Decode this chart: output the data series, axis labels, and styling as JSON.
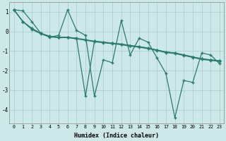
{
  "xlabel": "Humidex (Indice chaleur)",
  "bg_color": "#cce8e8",
  "grid_color": "#aacccc",
  "line_color": "#2a7b6e",
  "xlim_min": -0.5,
  "xlim_max": 23.5,
  "ylim_min": -4.7,
  "ylim_max": 1.5,
  "yticks": [
    1,
    0,
    -1,
    -2,
    -3,
    -4
  ],
  "xticks": [
    0,
    1,
    2,
    3,
    4,
    5,
    6,
    7,
    8,
    9,
    10,
    11,
    12,
    13,
    14,
    15,
    16,
    17,
    18,
    19,
    20,
    21,
    22,
    23
  ],
  "series": [
    {
      "x": [
        0,
        1,
        2,
        3,
        4,
        5,
        6,
        7,
        8,
        9,
        10,
        11,
        12,
        13,
        14,
        15,
        16,
        17,
        18,
        19,
        20,
        21,
        22,
        23
      ],
      "y": [
        1.1,
        1.05,
        0.5,
        -0.1,
        -0.3,
        -0.2,
        1.1,
        0.05,
        -0.2,
        -3.3,
        -1.45,
        -1.6,
        0.55,
        -1.2,
        -0.35,
        -0.55,
        -1.35,
        -2.15,
        -4.4,
        -2.5,
        -2.6,
        -1.1,
        -1.2,
        -1.65
      ]
    },
    {
      "x": [
        0,
        1,
        2,
        3,
        4,
        5,
        6,
        7,
        8,
        9,
        10,
        11,
        12,
        13,
        14,
        15,
        16,
        17,
        18,
        19,
        20,
        21,
        22,
        23
      ],
      "y": [
        1.1,
        0.5,
        0.15,
        -0.1,
        -0.25,
        -0.3,
        -0.3,
        -0.35,
        -0.42,
        -0.5,
        -0.55,
        -0.6,
        -0.65,
        -0.72,
        -0.78,
        -0.85,
        -0.95,
        -1.05,
        -1.1,
        -1.2,
        -1.3,
        -1.4,
        -1.45,
        -1.5
      ]
    },
    {
      "x": [
        0,
        1,
        2,
        3,
        4,
        5,
        6,
        7,
        8,
        9,
        10,
        11,
        12,
        13,
        14,
        15,
        16,
        17,
        18,
        19,
        20,
        21,
        22,
        23
      ],
      "y": [
        1.1,
        0.5,
        0.1,
        -0.12,
        -0.28,
        -0.32,
        -0.32,
        -0.38,
        -0.45,
        -0.53,
        -0.58,
        -0.63,
        -0.68,
        -0.75,
        -0.81,
        -0.88,
        -0.98,
        -1.08,
        -1.13,
        -1.23,
        -1.33,
        -1.43,
        -1.48,
        -1.53
      ]
    },
    {
      "x": [
        0,
        1,
        2,
        3,
        4,
        5,
        6,
        7,
        8,
        9,
        10,
        11,
        12,
        13,
        14,
        15,
        16,
        17,
        18,
        19,
        20,
        21,
        22,
        23
      ],
      "y": [
        1.1,
        0.5,
        0.15,
        -0.1,
        -0.25,
        -0.3,
        -0.3,
        -0.35,
        -3.3,
        -0.5,
        -0.55,
        -0.6,
        -0.65,
        -0.72,
        -0.78,
        -0.85,
        -0.95,
        -1.05,
        -1.1,
        -1.2,
        -1.3,
        -1.4,
        -1.45,
        -1.5
      ]
    }
  ]
}
